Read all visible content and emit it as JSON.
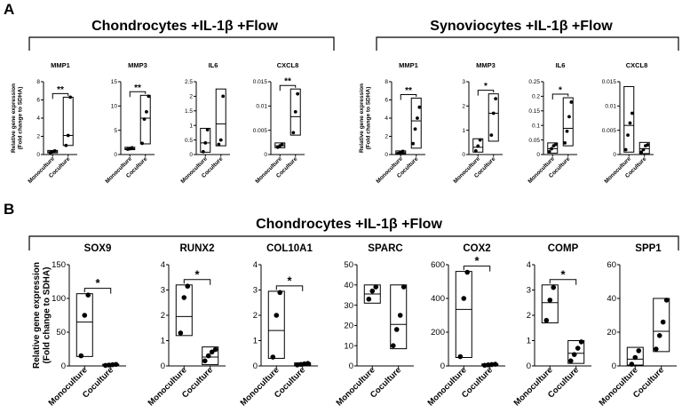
{
  "panels": [
    {
      "letter": "A",
      "group_titles": [
        "Chondrocytes +IL-1β +Flow",
        "Synoviocytes +IL-1β +Flow"
      ]
    },
    {
      "letter": "B",
      "group_titles": [
        "Chondrocytes +IL-1β +Flow"
      ]
    }
  ],
  "y_label": [
    "Relative gene expression",
    "(Fold change to SDHA)"
  ],
  "categories": [
    "Monoculture",
    "Coculture"
  ],
  "chart_data": [
    {
      "type": "box",
      "panel": "A",
      "group": "Chondrocytes +IL-1β +Flow",
      "title": "MMP1",
      "categories": [
        "Monoculture",
        "Coculture"
      ],
      "ylim": [
        0,
        8
      ],
      "yticks": [
        0,
        2,
        4,
        6,
        8
      ],
      "ylabel": "Relative gene expression (Fold change to SDHA)",
      "significance": "**",
      "series": [
        {
          "name": "Monoculture",
          "box": [
            0.18,
            0.45
          ],
          "median": 0.3,
          "points": [
            0.2,
            0.3,
            0.4
          ]
        },
        {
          "name": "Coculture",
          "box": [
            1.0,
            6.3
          ],
          "median": 2.1,
          "points": [
            1.0,
            2.1,
            6.3
          ]
        }
      ]
    },
    {
      "type": "box",
      "panel": "A",
      "group": "Chondrocytes +IL-1β +Flow",
      "title": "MMP3",
      "categories": [
        "Monoculture",
        "Coculture"
      ],
      "ylim": [
        0,
        15
      ],
      "yticks": [
        0,
        5,
        10,
        15
      ],
      "ylabel": "",
      "significance": "**",
      "series": [
        {
          "name": "Monoculture",
          "box": [
            1.0,
            1.5
          ],
          "median": 1.2,
          "points": [
            1.1,
            1.2,
            1.4
          ]
        },
        {
          "name": "Coculture",
          "box": [
            2.2,
            12.2
          ],
          "median": 7.5,
          "points": [
            2.3,
            7.3,
            8.8,
            12.0
          ]
        }
      ]
    },
    {
      "type": "box",
      "panel": "A",
      "group": "Chondrocytes +IL-1β +Flow",
      "title": "IL6",
      "categories": [
        "Monoculture",
        "Coculture"
      ],
      "ylim": [
        0,
        2.5
      ],
      "yticks": [
        0.0,
        0.5,
        1.0,
        1.5,
        2.0,
        2.5
      ],
      "ylabel": "",
      "significance": "",
      "series": [
        {
          "name": "Monoculture",
          "box": [
            0.08,
            0.9
          ],
          "median": 0.4,
          "points": [
            0.1,
            0.4,
            0.85
          ]
        },
        {
          "name": "Coculture",
          "box": [
            0.3,
            2.25
          ],
          "median": 1.05,
          "points": [
            0.35,
            0.5,
            2.0
          ]
        }
      ]
    },
    {
      "type": "box",
      "panel": "A",
      "group": "Chondrocytes +IL-1β +Flow",
      "title": "CXCL8",
      "categories": [
        "Monoculture",
        "Coculture"
      ],
      "ylim": [
        0,
        0.015
      ],
      "yticks": [
        0.0,
        0.005,
        0.01,
        0.015
      ],
      "ylabel": "",
      "significance": "**",
      "series": [
        {
          "name": "Monoculture",
          "box": [
            0.0014,
            0.0024
          ],
          "median": 0.0018,
          "points": [
            0.0015,
            0.0018,
            0.0021
          ]
        },
        {
          "name": "Coculture",
          "box": [
            0.004,
            0.0135
          ],
          "median": 0.0078,
          "points": [
            0.0045,
            0.0088,
            0.0125
          ]
        }
      ]
    },
    {
      "type": "box",
      "panel": "A",
      "group": "Synoviocytes +IL-1β +Flow",
      "title": "MMP1",
      "categories": [
        "Monoculture",
        "Coculture"
      ],
      "ylim": [
        0,
        8
      ],
      "yticks": [
        0,
        2,
        4,
        6,
        8
      ],
      "ylabel": "Relative gene expression (Fold change to SDHA)",
      "significance": "**",
      "series": [
        {
          "name": "Monoculture",
          "box": [
            0.1,
            0.4
          ],
          "median": 0.2,
          "points": [
            0.15,
            0.25,
            0.35
          ]
        },
        {
          "name": "Coculture",
          "box": [
            0.7,
            6.2
          ],
          "median": 3.7,
          "points": [
            1.2,
            2.8,
            4.0,
            5.2
          ]
        }
      ]
    },
    {
      "type": "box",
      "panel": "A",
      "group": "Synoviocytes +IL-1β +Flow",
      "title": "MMP3",
      "categories": [
        "Monoculture",
        "Coculture"
      ],
      "ylim": [
        0,
        3
      ],
      "yticks": [
        0,
        1,
        2,
        3
      ],
      "ylabel": "",
      "significance": "*",
      "series": [
        {
          "name": "Monoculture",
          "box": [
            0.1,
            0.65
          ],
          "median": 0.3,
          "points": [
            0.15,
            0.35,
            0.6
          ]
        },
        {
          "name": "Coculture",
          "box": [
            0.55,
            2.5
          ],
          "median": 1.7,
          "points": [
            0.8,
            1.7,
            2.3
          ]
        }
      ]
    },
    {
      "type": "box",
      "panel": "A",
      "group": "Synoviocytes +IL-1β +Flow",
      "title": "IL6",
      "categories": [
        "Monoculture",
        "Coculture"
      ],
      "ylim": [
        0,
        0.25
      ],
      "yticks": [
        0.0,
        0.05,
        0.1,
        0.15,
        0.2,
        0.25
      ],
      "ylabel": "",
      "significance": "*",
      "series": [
        {
          "name": "Monoculture",
          "box": [
            0.005,
            0.04
          ],
          "median": 0.02,
          "points": [
            0.01,
            0.02,
            0.03,
            0.035
          ]
        },
        {
          "name": "Coculture",
          "box": [
            0.03,
            0.195
          ],
          "median": 0.09,
          "points": [
            0.04,
            0.08,
            0.13,
            0.18
          ]
        }
      ]
    },
    {
      "type": "box",
      "panel": "A",
      "group": "Synoviocytes +IL-1β +Flow",
      "title": "CXCL8",
      "categories": [
        "Monoculture",
        "Coculture"
      ],
      "ylim": [
        0,
        0.015
      ],
      "yticks": [
        0.0,
        0.005,
        0.01,
        0.015
      ],
      "ylabel": "",
      "significance": "",
      "series": [
        {
          "name": "Monoculture",
          "box": [
            0.0005,
            0.014
          ],
          "median": 0.006,
          "points": [
            0.001,
            0.004,
            0.0065,
            0.0085
          ]
        },
        {
          "name": "Coculture",
          "box": [
            0.0002,
            0.0025
          ],
          "median": 0.0012,
          "points": [
            0.0005,
            0.001,
            0.0018,
            0.002
          ]
        }
      ]
    },
    {
      "type": "box",
      "panel": "B",
      "group": "Chondrocytes +IL-1β +Flow",
      "title": "SOX9",
      "categories": [
        "Monoculture",
        "Coculture"
      ],
      "ylim": [
        0,
        150
      ],
      "yticks": [
        0,
        50,
        100,
        150
      ],
      "ylabel": "Relative gene expression (Fold change to SDHA)",
      "significance": "*",
      "series": [
        {
          "name": "Monoculture",
          "box": [
            14,
            107
          ],
          "median": 65,
          "points": [
            15,
            75,
            105
          ]
        },
        {
          "name": "Coculture",
          "box": [
            0.5,
            2.5
          ],
          "median": 1.5,
          "points": [
            0.8,
            1.3,
            1.8,
            2.2
          ]
        }
      ]
    },
    {
      "type": "box",
      "panel": "B",
      "group": "Chondrocytes +IL-1β +Flow",
      "title": "RUNX2",
      "categories": [
        "Monoculture",
        "Coculture"
      ],
      "ylim": [
        0,
        4
      ],
      "yticks": [
        0,
        1,
        2,
        3,
        4
      ],
      "ylabel": "",
      "significance": "*",
      "series": [
        {
          "name": "Monoculture",
          "box": [
            1.2,
            3.2
          ],
          "median": 1.95,
          "points": [
            1.3,
            2.7,
            3.15
          ]
        },
        {
          "name": "Coculture",
          "box": [
            0.05,
            0.75
          ],
          "median": 0.35,
          "points": [
            0.2,
            0.4,
            0.55,
            0.65
          ]
        }
      ]
    },
    {
      "type": "box",
      "panel": "B",
      "group": "Chondrocytes +IL-1β +Flow",
      "title": "COL10A1",
      "categories": [
        "Monoculture",
        "Coculture"
      ],
      "ylim": [
        0,
        4
      ],
      "yticks": [
        0,
        1,
        2,
        3,
        4
      ],
      "ylabel": "",
      "significance": "*",
      "series": [
        {
          "name": "Monoculture",
          "box": [
            0.3,
            2.95
          ],
          "median": 1.4,
          "points": [
            0.35,
            2.0,
            2.9
          ]
        },
        {
          "name": "Coculture",
          "box": [
            0.02,
            0.12
          ],
          "median": 0.06,
          "points": [
            0.04,
            0.06,
            0.08,
            0.1
          ]
        }
      ]
    },
    {
      "type": "box",
      "panel": "B",
      "group": "Chondrocytes +IL-1β +Flow",
      "title": "SPARC",
      "categories": [
        "Monoculture",
        "Coculture"
      ],
      "ylim": [
        0,
        50
      ],
      "yticks": [
        0,
        10,
        20,
        30,
        40,
        50
      ],
      "ylabel": "",
      "significance": "",
      "series": [
        {
          "name": "Monoculture",
          "box": [
            31,
            40
          ],
          "median": 35.5,
          "points": [
            33,
            37,
            39
          ]
        },
        {
          "name": "Coculture",
          "box": [
            8.5,
            40
          ],
          "median": 20.5,
          "points": [
            10,
            18,
            25,
            39
          ]
        }
      ]
    },
    {
      "type": "box",
      "panel": "B",
      "group": "Chondrocytes +IL-1β +Flow",
      "title": "COX2",
      "categories": [
        "Monoculture",
        "Coculture"
      ],
      "ylim": [
        0,
        600
      ],
      "yticks": [
        0,
        200,
        400,
        600
      ],
      "ylabel": "",
      "significance": "*",
      "series": [
        {
          "name": "Monoculture",
          "box": [
            50,
            560
          ],
          "median": 335,
          "points": [
            55,
            400,
            555
          ]
        },
        {
          "name": "Coculture",
          "box": [
            3,
            12
          ],
          "median": 7,
          "points": [
            4,
            6,
            8,
            10
          ]
        }
      ]
    },
    {
      "type": "box",
      "panel": "B",
      "group": "Chondrocytes +IL-1β +Flow",
      "title": "COMP",
      "categories": [
        "Monoculture",
        "Coculture"
      ],
      "ylim": [
        0,
        4
      ],
      "yticks": [
        0,
        1,
        2,
        3,
        4
      ],
      "ylabel": "",
      "significance": "*",
      "series": [
        {
          "name": "Monoculture",
          "box": [
            1.7,
            3.2
          ],
          "median": 2.5,
          "points": [
            1.8,
            2.6,
            3.1
          ]
        },
        {
          "name": "Coculture",
          "box": [
            0.1,
            1.0
          ],
          "median": 0.5,
          "points": [
            0.2,
            0.45,
            0.7,
            0.95
          ]
        }
      ]
    },
    {
      "type": "box",
      "panel": "B",
      "group": "Chondrocytes +IL-1β +Flow",
      "title": "SPP1",
      "categories": [
        "Monoculture",
        "Coculture"
      ],
      "ylim": [
        0,
        60
      ],
      "yticks": [
        0,
        20,
        40,
        60
      ],
      "ylabel": "",
      "significance": "",
      "series": [
        {
          "name": "Monoculture",
          "box": [
            0.5,
            11
          ],
          "median": 4,
          "points": [
            1,
            5,
            9
          ]
        },
        {
          "name": "Coculture",
          "box": [
            8.5,
            40
          ],
          "median": 20.5,
          "points": [
            10,
            18,
            26,
            39
          ]
        }
      ]
    }
  ]
}
